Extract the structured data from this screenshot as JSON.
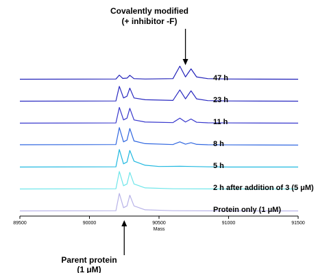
{
  "chart_data": {
    "type": "line",
    "xlabel": "Mass",
    "xlim": [
      89500,
      91500
    ],
    "x_ticks": [
      "89500",
      "90000",
      "90500",
      "91000",
      "91500"
    ],
    "tick_values": [
      89500,
      90000,
      90500,
      91000,
      91500
    ],
    "grid": false,
    "series": [
      {
        "name": "47 h",
        "color": "#1f1fb8",
        "points": [
          [
            89500,
            0.02
          ],
          [
            90190,
            0.03
          ],
          [
            90215,
            0.25
          ],
          [
            90240,
            0.06
          ],
          [
            90270,
            0.08
          ],
          [
            90290,
            0.24
          ],
          [
            90320,
            0.05
          ],
          [
            90400,
            0.03
          ],
          [
            90600,
            0.05
          ],
          [
            90650,
            0.75
          ],
          [
            90690,
            0.15
          ],
          [
            90730,
            0.6
          ],
          [
            90770,
            0.15
          ],
          [
            90850,
            0.05
          ],
          [
            91000,
            0.03
          ],
          [
            91500,
            0.02
          ]
        ]
      },
      {
        "name": "23 h",
        "color": "#2828c0",
        "points": [
          [
            89500,
            0.02
          ],
          [
            90190,
            0.03
          ],
          [
            90215,
            0.85
          ],
          [
            90245,
            0.2
          ],
          [
            90270,
            0.3
          ],
          [
            90290,
            0.75
          ],
          [
            90320,
            0.2
          ],
          [
            90400,
            0.1
          ],
          [
            90600,
            0.06
          ],
          [
            90650,
            0.65
          ],
          [
            90690,
            0.15
          ],
          [
            90730,
            0.6
          ],
          [
            90770,
            0.15
          ],
          [
            90850,
            0.05
          ],
          [
            91000,
            0.03
          ],
          [
            91500,
            0.02
          ]
        ]
      },
      {
        "name": "11 h",
        "color": "#3535cc",
        "points": [
          [
            89500,
            0.02
          ],
          [
            90190,
            0.03
          ],
          [
            90215,
            0.9
          ],
          [
            90245,
            0.2
          ],
          [
            90270,
            0.3
          ],
          [
            90290,
            0.85
          ],
          [
            90320,
            0.2
          ],
          [
            90400,
            0.08
          ],
          [
            90600,
            0.05
          ],
          [
            90650,
            0.3
          ],
          [
            90690,
            0.08
          ],
          [
            90730,
            0.25
          ],
          [
            90770,
            0.07
          ],
          [
            90850,
            0.04
          ],
          [
            91000,
            0.03
          ],
          [
            91500,
            0.02
          ]
        ]
      },
      {
        "name": "8 h",
        "color": "#2f66e0",
        "points": [
          [
            89500,
            0.04
          ],
          [
            90190,
            0.05
          ],
          [
            90215,
            1.0
          ],
          [
            90245,
            0.2
          ],
          [
            90270,
            0.3
          ],
          [
            90290,
            0.95
          ],
          [
            90320,
            0.25
          ],
          [
            90400,
            0.1
          ],
          [
            90600,
            0.05
          ],
          [
            90650,
            0.2
          ],
          [
            90690,
            0.07
          ],
          [
            90730,
            0.15
          ],
          [
            90770,
            0.06
          ],
          [
            90850,
            0.04
          ],
          [
            91000,
            0.03
          ],
          [
            91500,
            0.02
          ]
        ]
      },
      {
        "name": "5 h",
        "color": "#1fb8e0",
        "points": [
          [
            89500,
            0.02
          ],
          [
            90190,
            0.03
          ],
          [
            90215,
            1.0
          ],
          [
            90245,
            0.2
          ],
          [
            90270,
            0.3
          ],
          [
            90290,
            0.95
          ],
          [
            90320,
            0.35
          ],
          [
            90400,
            0.12
          ],
          [
            90500,
            0.05
          ],
          [
            90650,
            0.06
          ],
          [
            90730,
            0.05
          ],
          [
            90850,
            0.03
          ],
          [
            91000,
            0.02
          ],
          [
            91500,
            0.02
          ]
        ]
      },
      {
        "name": "2 h after addition of 3 (5 μM)",
        "color": "#6ee6ea",
        "points": [
          [
            89500,
            0.02
          ],
          [
            90190,
            0.03
          ],
          [
            90215,
            1.0
          ],
          [
            90245,
            0.2
          ],
          [
            90270,
            0.3
          ],
          [
            90290,
            0.95
          ],
          [
            90320,
            0.3
          ],
          [
            90400,
            0.08
          ],
          [
            90600,
            0.03
          ],
          [
            91000,
            0.02
          ],
          [
            91500,
            0.02
          ]
        ]
      },
      {
        "name": "Protein only (1 μM)",
        "color": "#b7b2e8",
        "points": [
          [
            89500,
            0.02
          ],
          [
            90190,
            0.03
          ],
          [
            90215,
            1.0
          ],
          [
            90245,
            0.2
          ],
          [
            90270,
            0.3
          ],
          [
            90290,
            0.9
          ],
          [
            90320,
            0.3
          ],
          [
            90400,
            0.08
          ],
          [
            90600,
            0.03
          ],
          [
            91000,
            0.02
          ],
          [
            91500,
            0.02
          ]
        ]
      }
    ],
    "annotations": [
      {
        "label_lines": [
          "Covalently modified",
          "(+ inhibitor -F)"
        ],
        "x": 90690,
        "position": "top"
      },
      {
        "label_lines": [
          "Parent protein",
          "(1 μM)"
        ],
        "x": 90250,
        "position": "bottom"
      }
    ]
  }
}
